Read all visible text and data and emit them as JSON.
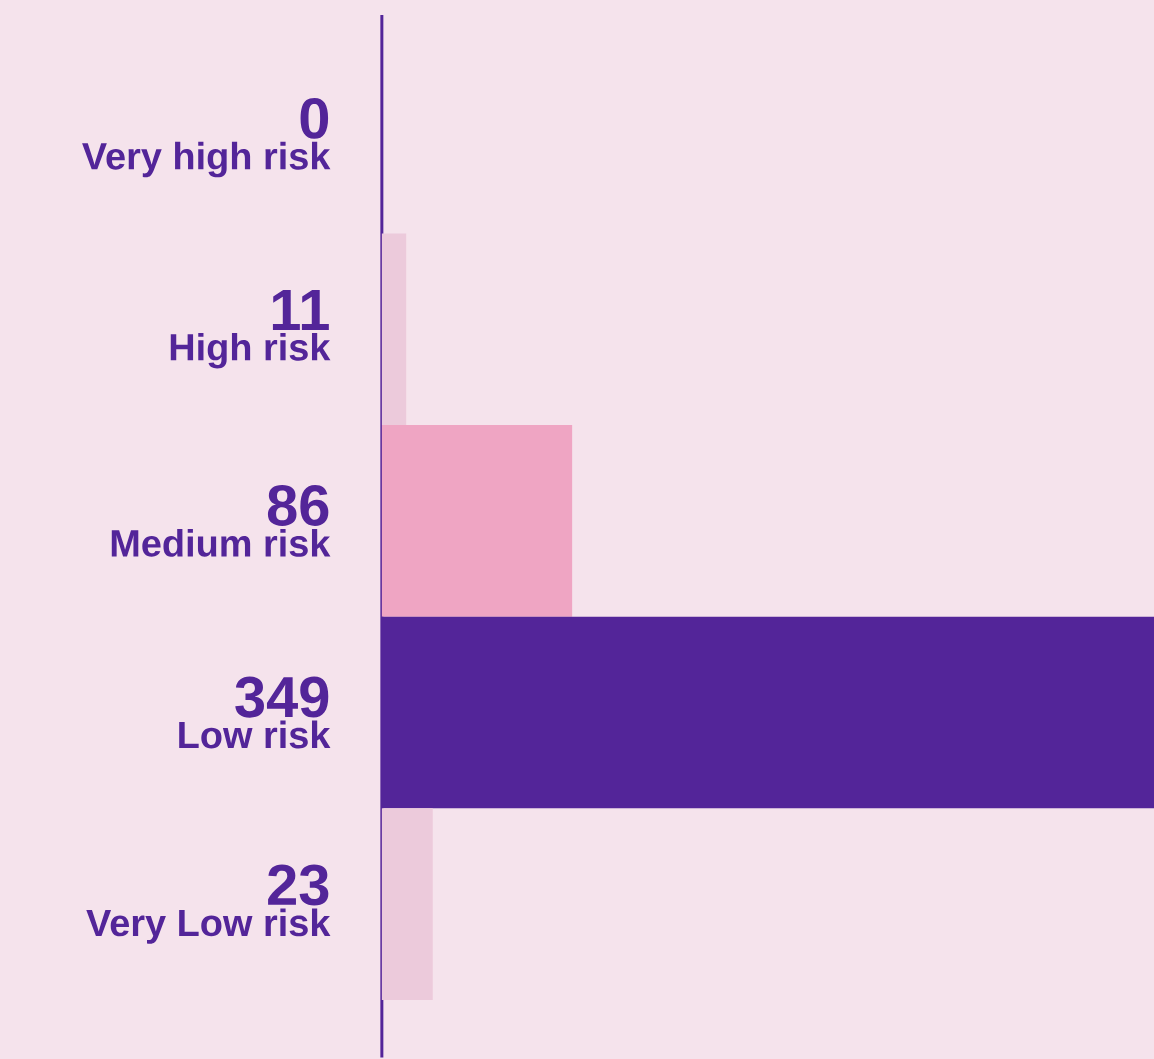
{
  "chart_data": {
    "type": "bar",
    "orientation": "horizontal",
    "categories": [
      "Very high risk",
      "High risk",
      "Medium risk",
      "Low risk",
      "Very Low risk"
    ],
    "values": [
      0,
      11,
      86,
      349,
      23
    ],
    "colors": [
      "#eccadb",
      "#eccadb",
      "#efa5c3",
      "#532599",
      "#eccadb"
    ],
    "xlim": [
      0,
      349
    ],
    "data_labels": true
  }
}
